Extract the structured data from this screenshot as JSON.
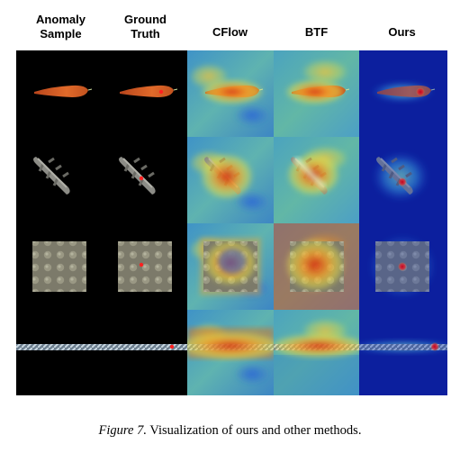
{
  "figure": {
    "columns": [
      {
        "id": "anomaly-sample",
        "label": "Anomaly\nSample"
      },
      {
        "id": "ground-truth",
        "label": "Ground\nTruth"
      },
      {
        "id": "cflow",
        "label": "CFlow"
      },
      {
        "id": "btf",
        "label": "BTF"
      },
      {
        "id": "ours",
        "label": "Ours"
      }
    ],
    "rows": [
      {
        "id": "carrot"
      },
      {
        "id": "dowel"
      },
      {
        "id": "foam"
      },
      {
        "id": "rope"
      }
    ],
    "caption": {
      "label": "Figure 7.",
      "text": "Visualization of ours and other methods."
    }
  }
}
